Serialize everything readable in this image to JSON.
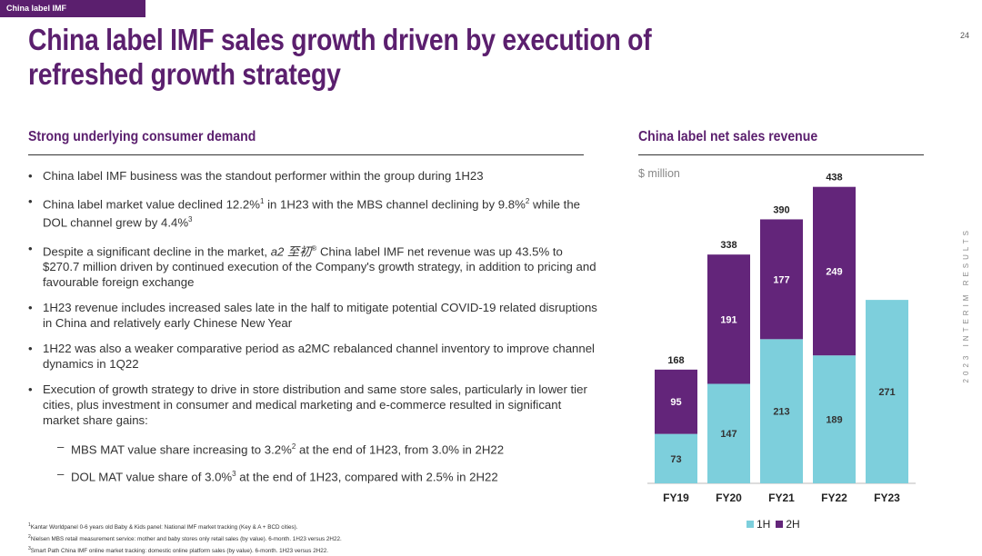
{
  "header": {
    "tag": "China label IMF",
    "page_number": "24",
    "side_text": "2023 INTERIM RESULTS",
    "title": "China label IMF sales growth driven by execution of refreshed growth strategy"
  },
  "left": {
    "section_title": "Strong underlying consumer demand",
    "bullets": [
      {
        "text": "China label IMF business was the standout performer within the group during 1H23"
      },
      {
        "a": "China label market value declined 12.2%",
        "sup1": "1",
        "b": " in 1H23 with the MBS channel declining by 9.8%",
        "sup2": "2",
        "c": " while the DOL channel grew by 4.4%",
        "sup3": "3"
      },
      {
        "a": "Despite a significant decline in the market, ",
        "brand": "a2 至初",
        "reg": "®",
        "b": " China label IMF net revenue was up 43.5% to $270.7 million driven by continued execution of the Company's growth strategy, in addition to pricing and favourable foreign exchange"
      },
      {
        "text": "1H23 revenue includes increased sales late in the half to mitigate potential COVID-19 related disruptions in China and relatively early Chinese New Year"
      },
      {
        "text": "1H22 was also a weaker comparative period as a2MC rebalanced channel inventory to improve channel dynamics in 1Q22"
      },
      {
        "text": "Execution of growth strategy to drive in store distribution and same store sales, particularly in lower tier cities, plus investment in consumer and medical marketing and e-commerce resulted in significant market share gains:"
      }
    ],
    "sub_bullets": [
      {
        "a": "MBS MAT value share increasing to 3.2%",
        "sup": "2",
        "b": " at the end of 1H23, from 3.0% in 2H22"
      },
      {
        "a": "DOL MAT value share of 3.0%",
        "sup": "3",
        "b": " at the end of 1H23, compared with 2.5% in 2H22"
      }
    ],
    "bullet_symbol": "•",
    "dash_symbol": "–"
  },
  "footnotes": [
    {
      "num": "1",
      "text": "Kantar Worldpanel 0-6 years old Baby & Kids panel: National IMF market tracking (Key & A + BCD cities)."
    },
    {
      "num": "2",
      "text": "Nielsen MBS retail measurement service: mother and baby stores only retail sales (by value). 6-month. 1H23 versus 2H22."
    },
    {
      "num": "3",
      "text": "Smart Path China IMF online market tracking: domestic online platform sales (by value). 6-month. 1H23 versus 2H22."
    }
  ],
  "right": {
    "section_title": "China label net sales revenue",
    "unit": "$ million"
  },
  "colors": {
    "brand_purple": "#5b1f6e",
    "series_1h": "#7dcfdc",
    "series_2h": "#63257a"
  },
  "chart_data": {
    "type": "bar",
    "stacked": true,
    "categories": [
      "FY19",
      "FY20",
      "FY21",
      "FY22",
      "FY23"
    ],
    "series": [
      {
        "name": "1H",
        "values": [
          73,
          147,
          213,
          189,
          271
        ]
      },
      {
        "name": "2H",
        "values": [
          95,
          191,
          177,
          249,
          null
        ]
      }
    ],
    "totals": [
      168,
      338,
      390,
      438,
      null
    ],
    "ylim": [
      0,
      450
    ],
    "grid": false,
    "legend_position": "bottom"
  }
}
